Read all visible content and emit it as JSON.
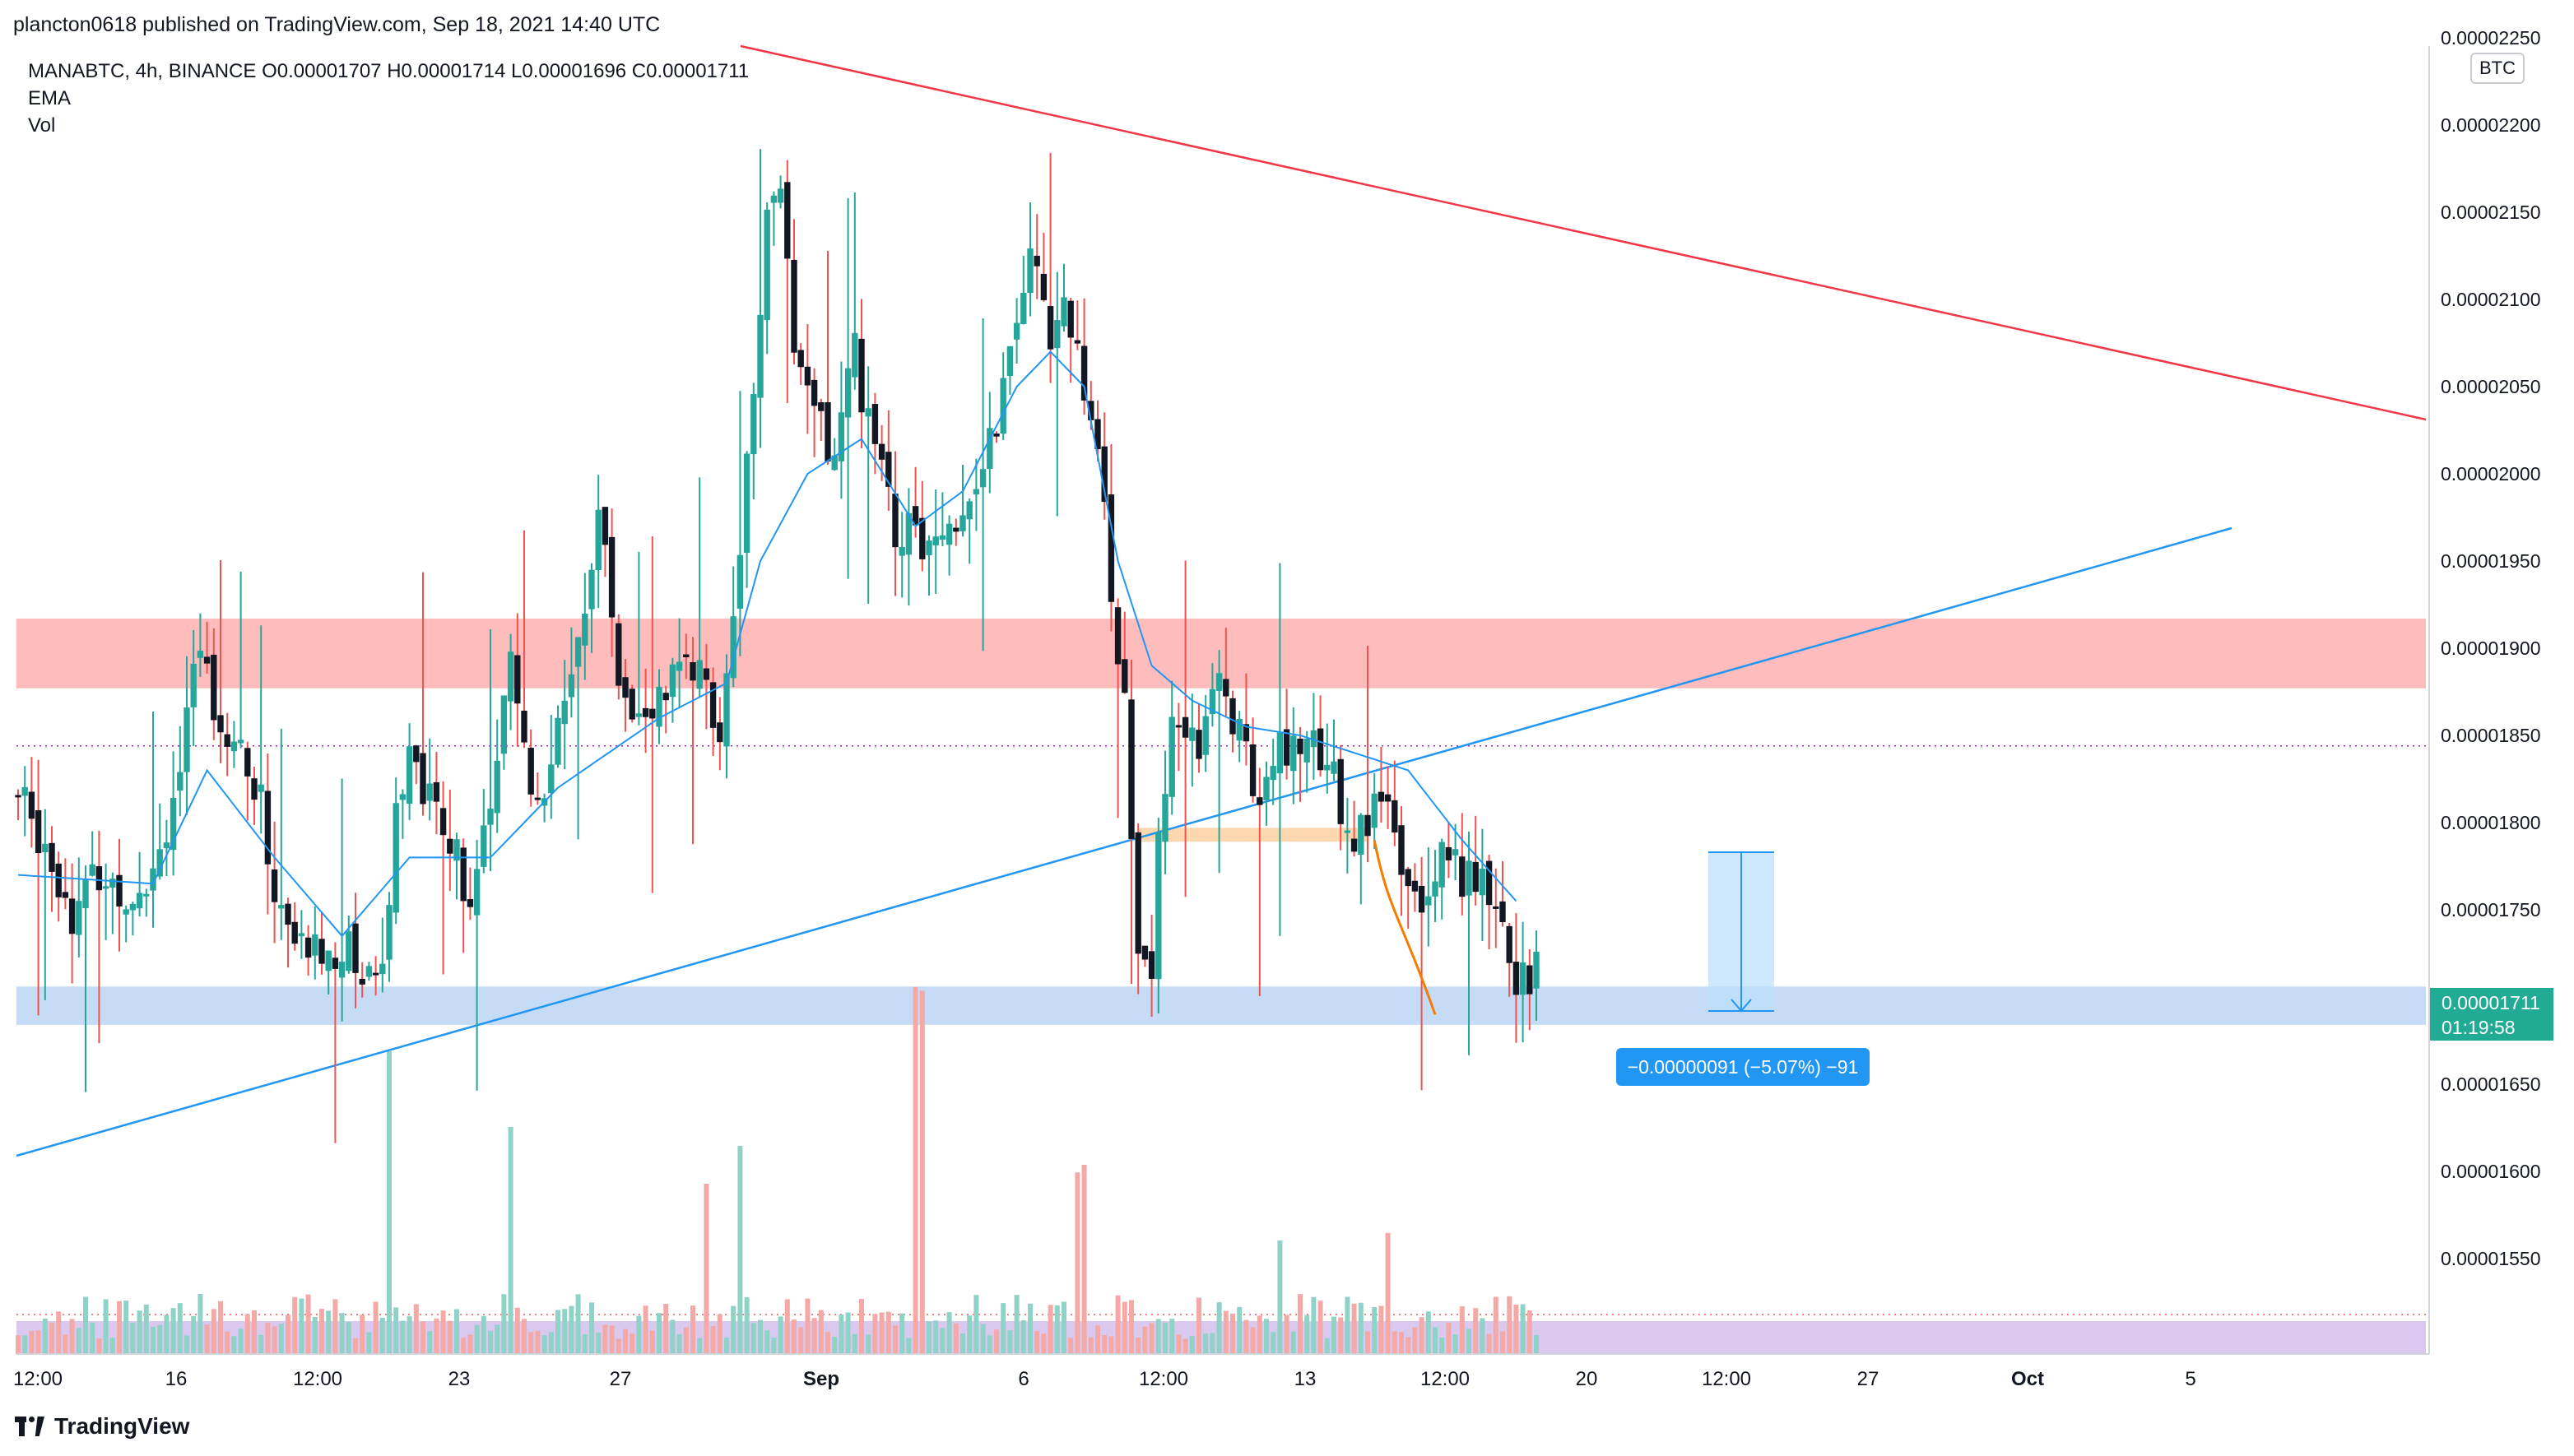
{
  "header": {
    "text": "plancton0618 published on TradingView.com, Sep 18, 2021 14:40 UTC"
  },
  "legend": {
    "symbol_line": "MANABTC, 4h, BINANCE  O0.00001707  H0.00001714  L0.00001696  C0.00001711",
    "ema_label": "EMA",
    "vol_label": "Vol"
  },
  "badges": {
    "currency": "BTC",
    "last_price": "0.00001711",
    "countdown": "01:19:58",
    "measure": "−0.00000091 (−5.07%) −91"
  },
  "footer": {
    "brand": "TradingView"
  },
  "colors": {
    "up": "#26a69a",
    "down": "#ef5350",
    "up_vol": "#8fd3c8",
    "down_vol": "#f4a9a6",
    "ema": "#2196f3",
    "resistance_line": "#f23645",
    "support_line": "#2196f3",
    "red_zone": "#ffbcbc",
    "blue_zone": "#c6dcf6",
    "orange_zone": "#fcd7b0",
    "vol_band": "#d9c9ee"
  },
  "chart_data": {
    "type": "candlestick",
    "symbol": "MANABTC",
    "timeframe": "4h",
    "exchange": "BINANCE",
    "ylim": [
      1.48e-05,
      2.26e-05
    ],
    "y_ticks": [
      "0.00002250",
      "0.00002200",
      "0.00002150",
      "0.00002100",
      "0.00002050",
      "0.00002000",
      "0.00001950",
      "0.00001900",
      "0.00001850",
      "0.00001800",
      "0.00001750",
      "0.00001650",
      "0.00001600",
      "0.00001550"
    ],
    "x_ticks": [
      "12:00",
      "16",
      "12:00",
      "23",
      "27",
      "Sep",
      "6",
      "12:00",
      "13",
      "12:00",
      "20",
      "12:00",
      "27",
      "Oct",
      "5"
    ],
    "close_anchors": [
      [
        0,
        1.815
      ],
      [
        4,
        1.79
      ],
      [
        8,
        1.75
      ],
      [
        12,
        1.77
      ],
      [
        16,
        1.76
      ],
      [
        20,
        1.775
      ],
      [
        24,
        1.83
      ],
      [
        27,
        1.9
      ],
      [
        30,
        1.86
      ],
      [
        33,
        1.84
      ],
      [
        36,
        1.81
      ],
      [
        38,
        1.76
      ],
      [
        41,
        1.73
      ],
      [
        45,
        1.725
      ],
      [
        48,
        1.73
      ],
      [
        51,
        1.715
      ],
      [
        54,
        1.72
      ],
      [
        56,
        1.8
      ],
      [
        58,
        1.85
      ],
      [
        61,
        1.81
      ],
      [
        64,
        1.79
      ],
      [
        67,
        1.76
      ],
      [
        70,
        1.8
      ],
      [
        73,
        1.89
      ],
      [
        76,
        1.82
      ],
      [
        79,
        1.83
      ],
      [
        83,
        1.9
      ],
      [
        86,
        1.98
      ],
      [
        89,
        1.89
      ],
      [
        92,
        1.86
      ],
      [
        95,
        1.87
      ],
      [
        98,
        1.89
      ],
      [
        101,
        1.88
      ],
      [
        104,
        1.86
      ],
      [
        107,
        1.96
      ],
      [
        109,
        2.05
      ],
      [
        111,
        2.15
      ],
      [
        113,
        2.16
      ],
      [
        115,
        2.06
      ],
      [
        118,
        2.03
      ],
      [
        121,
        2.01
      ],
      [
        124,
        2.07
      ],
      [
        127,
        2.01
      ],
      [
        130,
        1.97
      ],
      [
        133,
        1.96
      ],
      [
        136,
        1.955
      ],
      [
        139,
        1.98
      ],
      [
        142,
        2.0
      ],
      [
        144,
        2.02
      ],
      [
        147,
        2.06
      ],
      [
        150,
        2.12
      ],
      [
        153,
        2.08
      ],
      [
        156,
        2.09
      ],
      [
        158,
        2.04
      ],
      [
        161,
        1.98
      ],
      [
        164,
        1.86
      ],
      [
        166,
        1.74
      ],
      [
        168,
        1.72
      ],
      [
        169,
        1.8
      ],
      [
        172,
        1.87
      ],
      [
        175,
        1.85
      ],
      [
        178,
        1.89
      ],
      [
        181,
        1.85
      ],
      [
        184,
        1.815
      ],
      [
        187,
        1.84
      ],
      [
        190,
        1.85
      ],
      [
        193,
        1.84
      ],
      [
        196,
        1.81
      ],
      [
        199,
        1.79
      ],
      [
        202,
        1.81
      ],
      [
        205,
        1.78
      ],
      [
        208,
        1.76
      ],
      [
        211,
        1.79
      ],
      [
        214,
        1.77
      ],
      [
        217,
        1.76
      ],
      [
        220,
        1.73
      ],
      [
        223,
        1.705
      ],
      [
        225,
        1.711
      ]
    ],
    "ema_anchors": [
      [
        0,
        1.77
      ],
      [
        20,
        1.765
      ],
      [
        28,
        1.83
      ],
      [
        38,
        1.78
      ],
      [
        48,
        1.735
      ],
      [
        58,
        1.78
      ],
      [
        70,
        1.78
      ],
      [
        80,
        1.82
      ],
      [
        95,
        1.86
      ],
      [
        105,
        1.88
      ],
      [
        110,
        1.95
      ],
      [
        117,
        2.0
      ],
      [
        125,
        2.02
      ],
      [
        133,
        1.97
      ],
      [
        140,
        1.99
      ],
      [
        148,
        2.05
      ],
      [
        153,
        2.07
      ],
      [
        158,
        2.05
      ],
      [
        163,
        1.95
      ],
      [
        168,
        1.89
      ],
      [
        174,
        1.87
      ],
      [
        182,
        1.855
      ],
      [
        190,
        1.85
      ],
      [
        198,
        1.84
      ],
      [
        206,
        1.83
      ],
      [
        214,
        1.79
      ],
      [
        222,
        1.755
      ]
    ],
    "volume_spikes": [
      [
        55,
        0.8
      ],
      [
        73,
        0.6
      ],
      [
        102,
        0.45
      ],
      [
        107,
        0.55
      ],
      [
        133,
        0.97
      ],
      [
        134,
        0.96
      ],
      [
        157,
        0.48
      ],
      [
        158,
        0.5
      ],
      [
        187,
        0.3
      ],
      [
        203,
        0.32
      ]
    ],
    "zones": [
      {
        "name": "resistance",
        "from": 1.877e-05,
        "to": 1.917e-05
      },
      {
        "name": "support",
        "from": 1.684e-05,
        "to": 1.706e-05
      },
      {
        "name": "retest",
        "from": 1.789e-05,
        "to": 1.797e-05
      }
    ],
    "dotted_level": 1.844e-05,
    "measure": {
      "from": 1.783e-05,
      "to": 1.692e-05,
      "change": "−0.00000091",
      "percent": "−5.07%",
      "bars": -91
    }
  }
}
